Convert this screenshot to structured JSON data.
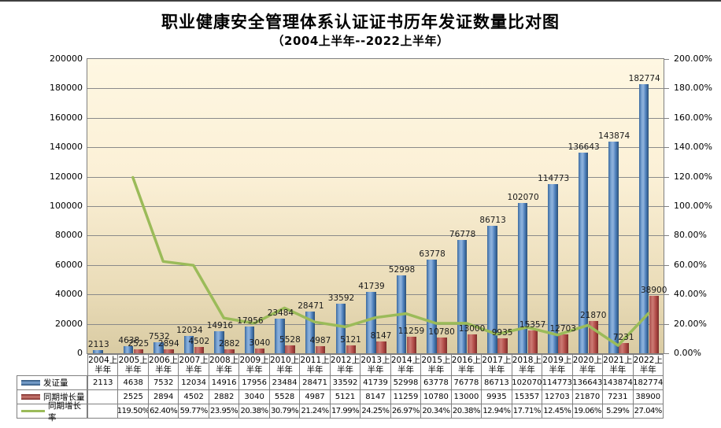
{
  "title": "职业健康安全管理体系认证证书历年发证数量比对图",
  "subtitle": "（2004上半年--2022上半年）",
  "chart_data": {
    "type": "combo-bar-line",
    "title": "职业健康安全管理体系认证证书历年发证数量比对图",
    "subtitle": "（2004上半年--2022上半年）",
    "categories": [
      "2004上半年",
      "2005上半年",
      "2006上半年",
      "2007上半年",
      "2008上半年",
      "2009上半年",
      "2010上半年",
      "2011上半年",
      "2012上半年",
      "2013上半年",
      "2014上半年",
      "2015上半年",
      "2016上半年",
      "2017上半年",
      "2018上半年",
      "2019上半年",
      "2020上半年",
      "2021上半年",
      "2022上半年"
    ],
    "series": [
      {
        "name": "发证量",
        "type": "bar",
        "color": "#4F81BD",
        "axis": "left",
        "values": [
          2113,
          4638,
          7532,
          12034,
          14916,
          17956,
          23484,
          28471,
          33592,
          41739,
          52998,
          63778,
          76778,
          86713,
          102070,
          114773,
          136643,
          143874,
          182774
        ]
      },
      {
        "name": "同期增长量",
        "type": "bar",
        "color": "#C0504D",
        "axis": "left",
        "values": [
          null,
          2525,
          2894,
          4502,
          2882,
          3040,
          5528,
          4987,
          5121,
          8147,
          11259,
          10780,
          13000,
          9935,
          15357,
          12703,
          21870,
          7231,
          38900
        ]
      },
      {
        "name": "同期增长率",
        "type": "line",
        "color": "#9BBB59",
        "axis": "right",
        "values": [
          null,
          119.5,
          62.4,
          59.77,
          23.95,
          20.38,
          30.79,
          21.24,
          17.99,
          24.25,
          26.97,
          20.34,
          20.38,
          12.94,
          17.71,
          12.45,
          19.06,
          5.29,
          27.04
        ],
        "labels": [
          "",
          "119.50%",
          "62.40%",
          "59.77%",
          "23.95%",
          "20.38%",
          "30.79%",
          "21.24%",
          "17.99%",
          "24.25%",
          "26.97%",
          "20.34%",
          "20.38%",
          "12.94%",
          "17.71%",
          "12.45%",
          "19.06%",
          "5.29%",
          "27.04%"
        ]
      }
    ],
    "left_axis": {
      "min": 0,
      "max": 200000,
      "ticks": [
        "0",
        "20000",
        "40000",
        "60000",
        "80000",
        "100000",
        "120000",
        "140000",
        "160000",
        "180000",
        "200000"
      ]
    },
    "right_axis": {
      "min": 0,
      "max": 200,
      "ticks": [
        "0.00%",
        "20.00%",
        "40.00%",
        "60.00%",
        "80.00%",
        "100.00%",
        "120.00%",
        "140.00%",
        "160.00%",
        "180.00%",
        "200.00%"
      ]
    },
    "grid": true,
    "legend_position": "bottom-left-table",
    "colors": {
      "plot_bg_top": "#FDF5DC",
      "plot_bg_bottom": "#D9CBA3",
      "gridline": "#808080",
      "bar_blue": "#4F81BD",
      "bar_red": "#C0504D",
      "line_green": "#9BBB59",
      "border": "#808080"
    }
  }
}
